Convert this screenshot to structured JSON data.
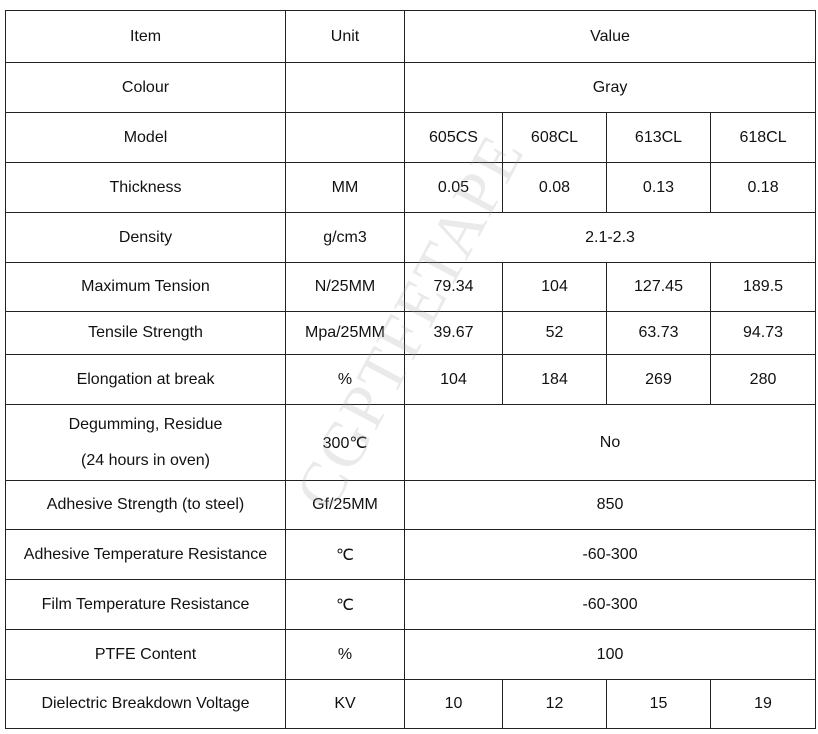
{
  "watermark": "CGPTFETAPE",
  "table": {
    "header": [
      "Item",
      "Unit",
      "Value"
    ],
    "rows": [
      [
        "Colour",
        "Gray"
      ],
      [
        "Model",
        "605CS",
        "608CL",
        "613CL",
        "618CL"
      ],
      [
        "Thickness",
        "MM",
        "0.05",
        "0.08",
        "0.13",
        "0.18"
      ],
      [
        "Density",
        "g/cm3",
        "2.1-2.3"
      ],
      [
        "Maximum Tension",
        "N/25MM",
        "79.34",
        "104",
        "127.45",
        "189.5"
      ],
      [
        "Tensile Strength",
        "Mpa/25MM",
        "39.67",
        "52",
        "63.73",
        "94.73"
      ],
      [
        "Elongation at break",
        "%",
        "104",
        "184",
        "269",
        "280"
      ],
      [
        [
          "Degumming, Residue",
          "(24 hours in oven)"
        ],
        "300℃",
        "No"
      ],
      [
        "Adhesive Strength (to steel)",
        "Gf/25MM",
        "850"
      ],
      [
        "Adhesive Temperature Resistance",
        "℃",
        "-60-300"
      ],
      [
        "Film Temperature Resistance",
        "℃",
        "-60-300"
      ],
      [
        "PTFE Content",
        "%",
        "100"
      ],
      [
        "Dielectric Breakdown Voltage",
        "KV",
        "10",
        "12",
        "15",
        "19"
      ]
    ]
  }
}
